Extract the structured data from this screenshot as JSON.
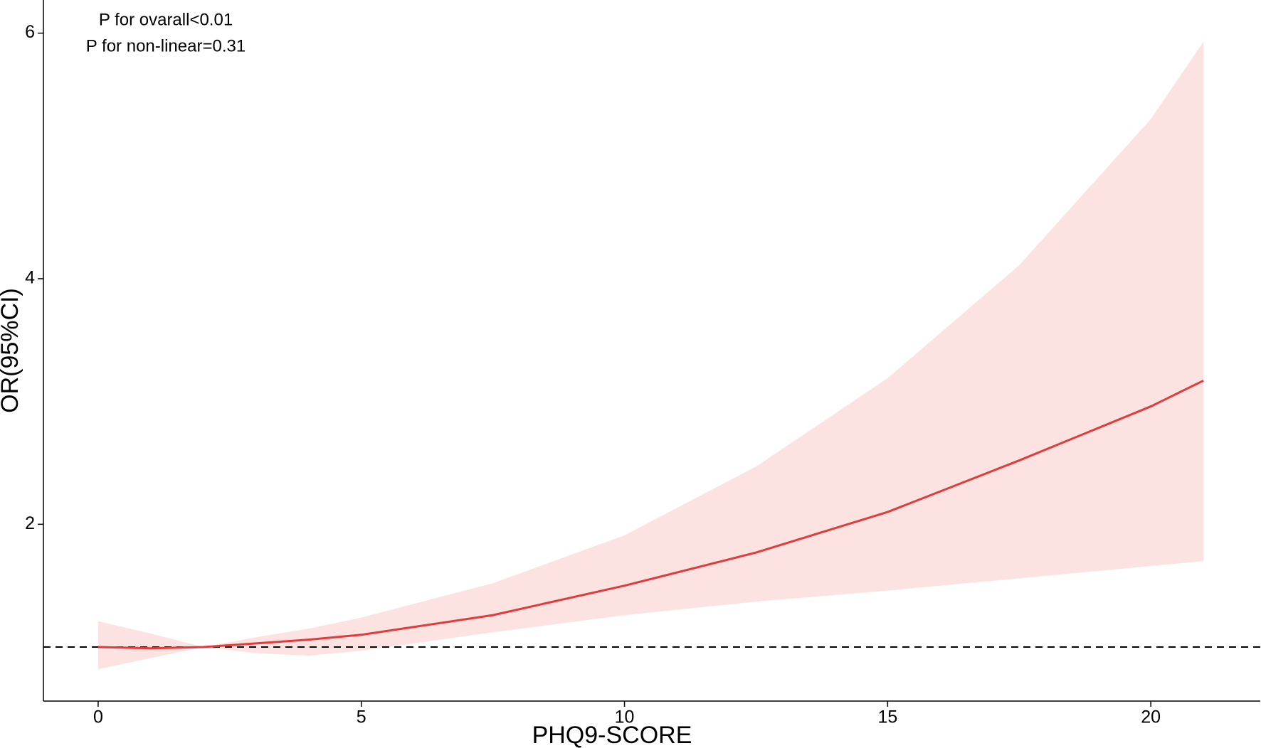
{
  "chart_data": {
    "type": "line",
    "annotations": [
      "P for ovarall<0.01",
      "P for non-linear=0.31"
    ],
    "x_label": "PHQ9-SCORE",
    "y_label": "OR(95%CI)",
    "x": [
      0,
      1,
      2,
      3,
      4,
      5,
      7.5,
      10,
      12.5,
      15,
      17.5,
      20,
      21
    ],
    "values": [
      1.0,
      0.99,
      1.0,
      1.03,
      1.06,
      1.1,
      1.26,
      1.5,
      1.77,
      2.1,
      2.52,
      2.96,
      3.17
    ],
    "lower": [
      0.82,
      0.91,
      1.0,
      0.95,
      0.93,
      0.97,
      1.12,
      1.26,
      1.37,
      1.46,
      1.56,
      1.66,
      1.7
    ],
    "upper": [
      1.21,
      1.11,
      1.0,
      1.08,
      1.15,
      1.24,
      1.52,
      1.91,
      2.47,
      3.19,
      4.11,
      5.3,
      5.93
    ],
    "color": "#e03c3c",
    "band_color": "#fde2e2",
    "reference_line": 1,
    "xlim": [
      -1.04,
      22.08
    ],
    "ylim": [
      0.56,
      6.27
    ],
    "xticks": [
      0,
      5,
      10,
      15,
      20
    ],
    "yticks": [
      2,
      4,
      6
    ],
    "grid": false
  }
}
